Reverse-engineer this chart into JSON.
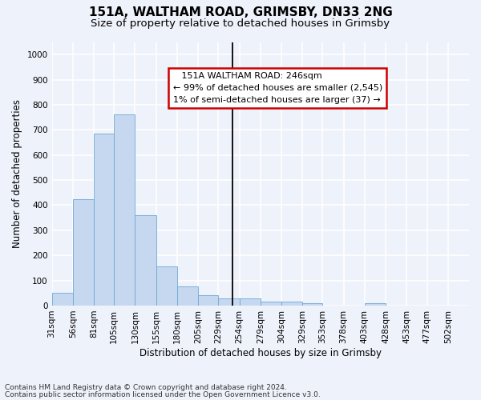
{
  "title_line1": "151A, WALTHAM ROAD, GRIMSBY, DN33 2NG",
  "title_line2": "Size of property relative to detached houses in Grimsby",
  "xlabel": "Distribution of detached houses by size in Grimsby",
  "ylabel": "Number of detached properties",
  "footnote1": "Contains HM Land Registry data © Crown copyright and database right 2024.",
  "footnote2": "Contains public sector information licensed under the Open Government Licence v3.0.",
  "annotation_line1": "   151A WALTHAM ROAD: 246sqm   ",
  "annotation_line2": "← 99% of detached houses are smaller (2,545)",
  "annotation_line3": "1% of semi-detached houses are larger (37) →",
  "bar_color": "#c5d8f0",
  "bar_edge_color": "#6fa8d4",
  "background_color": "#eef2fb",
  "grid_color": "#ffffff",
  "vline_x": 246,
  "vline_color": "#000000",
  "bins": [
    31,
    56,
    81,
    105,
    130,
    155,
    180,
    205,
    229,
    254,
    279,
    304,
    329,
    353,
    378,
    403,
    428,
    453,
    477,
    502,
    527
  ],
  "bar_heights": [
    50,
    425,
    685,
    760,
    360,
    155,
    75,
    40,
    27,
    27,
    17,
    17,
    10,
    0,
    0,
    10,
    0,
    0,
    0,
    0,
    0
  ],
  "ylim": [
    0,
    1050
  ],
  "yticks": [
    0,
    100,
    200,
    300,
    400,
    500,
    600,
    700,
    800,
    900,
    1000
  ],
  "annotation_box_facecolor": "#ffffff",
  "annotation_box_edgecolor": "#cc0000",
  "title_fontsize": 11,
  "subtitle_fontsize": 9.5,
  "axis_label_fontsize": 8.5,
  "tick_fontsize": 7.5,
  "annotation_fontsize": 8,
  "footnote_fontsize": 6.5
}
